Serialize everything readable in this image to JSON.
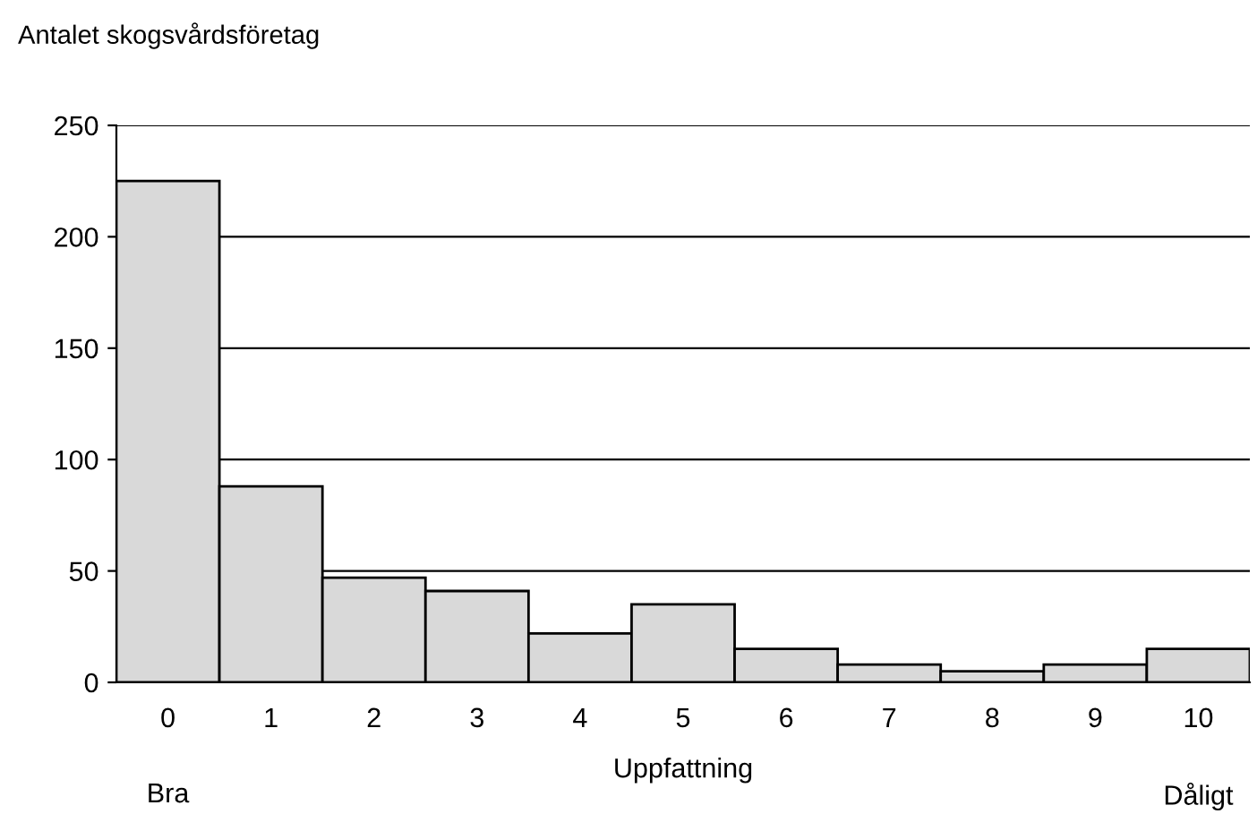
{
  "chart_data": {
    "type": "bar",
    "ylabel": "Antalet skogsvårdsföretag",
    "xlabel": "Uppfattning",
    "categories": [
      "0",
      "1",
      "2",
      "3",
      "4",
      "5",
      "6",
      "7",
      "8",
      "9",
      "10"
    ],
    "values": [
      225,
      88,
      47,
      41,
      22,
      35,
      15,
      8,
      5,
      8,
      15
    ],
    "color": "#d9d9d9",
    "ylim": [
      0,
      250
    ],
    "yticks": [
      0,
      50,
      100,
      150,
      200,
      250
    ],
    "grid": "y",
    "legend": false,
    "annotations": [
      "Bra",
      "Dåligt"
    ]
  }
}
